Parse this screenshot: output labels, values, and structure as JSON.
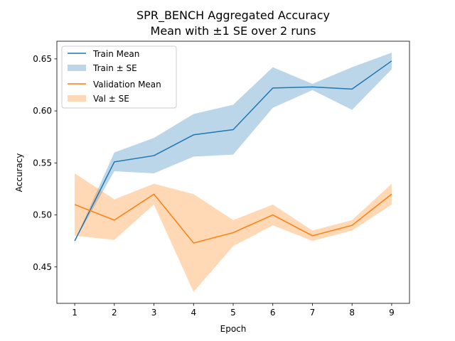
{
  "chart_data": {
    "type": "line",
    "title": "SPR_BENCH Aggregated Accuracy",
    "subtitle": "Mean with ±1 SE over 2 runs",
    "xlabel": "Epoch",
    "ylabel": "Accuracy",
    "x": [
      1,
      2,
      3,
      4,
      5,
      6,
      7,
      8,
      9
    ],
    "xlim": [
      0.55,
      9.45
    ],
    "ylim": [
      0.415,
      0.667
    ],
    "xticks": [
      "1",
      "2",
      "3",
      "4",
      "5",
      "6",
      "7",
      "8",
      "9"
    ],
    "yticks": [
      "0.45",
      "0.50",
      "0.55",
      "0.60",
      "0.65"
    ],
    "ytick_values": [
      0.45,
      0.5,
      0.55,
      0.6,
      0.65
    ],
    "grid": false,
    "legend_position": "upper-left",
    "series": [
      {
        "name": "Train Mean",
        "band_name": "Train ± SE",
        "color": "#1f77b4",
        "band_color": "#1f77b4",
        "values": [
          0.475,
          0.551,
          0.557,
          0.577,
          0.582,
          0.622,
          0.623,
          0.621,
          0.648
        ],
        "lower": [
          0.475,
          0.542,
          0.54,
          0.556,
          0.558,
          0.603,
          0.62,
          0.601,
          0.64
        ],
        "upper": [
          0.475,
          0.56,
          0.574,
          0.597,
          0.606,
          0.642,
          0.626,
          0.642,
          0.656
        ]
      },
      {
        "name": "Validation Mean",
        "band_name": "Val ± SE",
        "color": "#ff7f0e",
        "band_color": "#ff7f0e",
        "values": [
          0.51,
          0.495,
          0.52,
          0.473,
          0.483,
          0.5,
          0.48,
          0.49,
          0.52
        ],
        "lower": [
          0.48,
          0.476,
          0.51,
          0.426,
          0.47,
          0.49,
          0.475,
          0.485,
          0.51
        ],
        "upper": [
          0.54,
          0.515,
          0.53,
          0.52,
          0.495,
          0.51,
          0.485,
          0.495,
          0.53
        ]
      }
    ]
  }
}
